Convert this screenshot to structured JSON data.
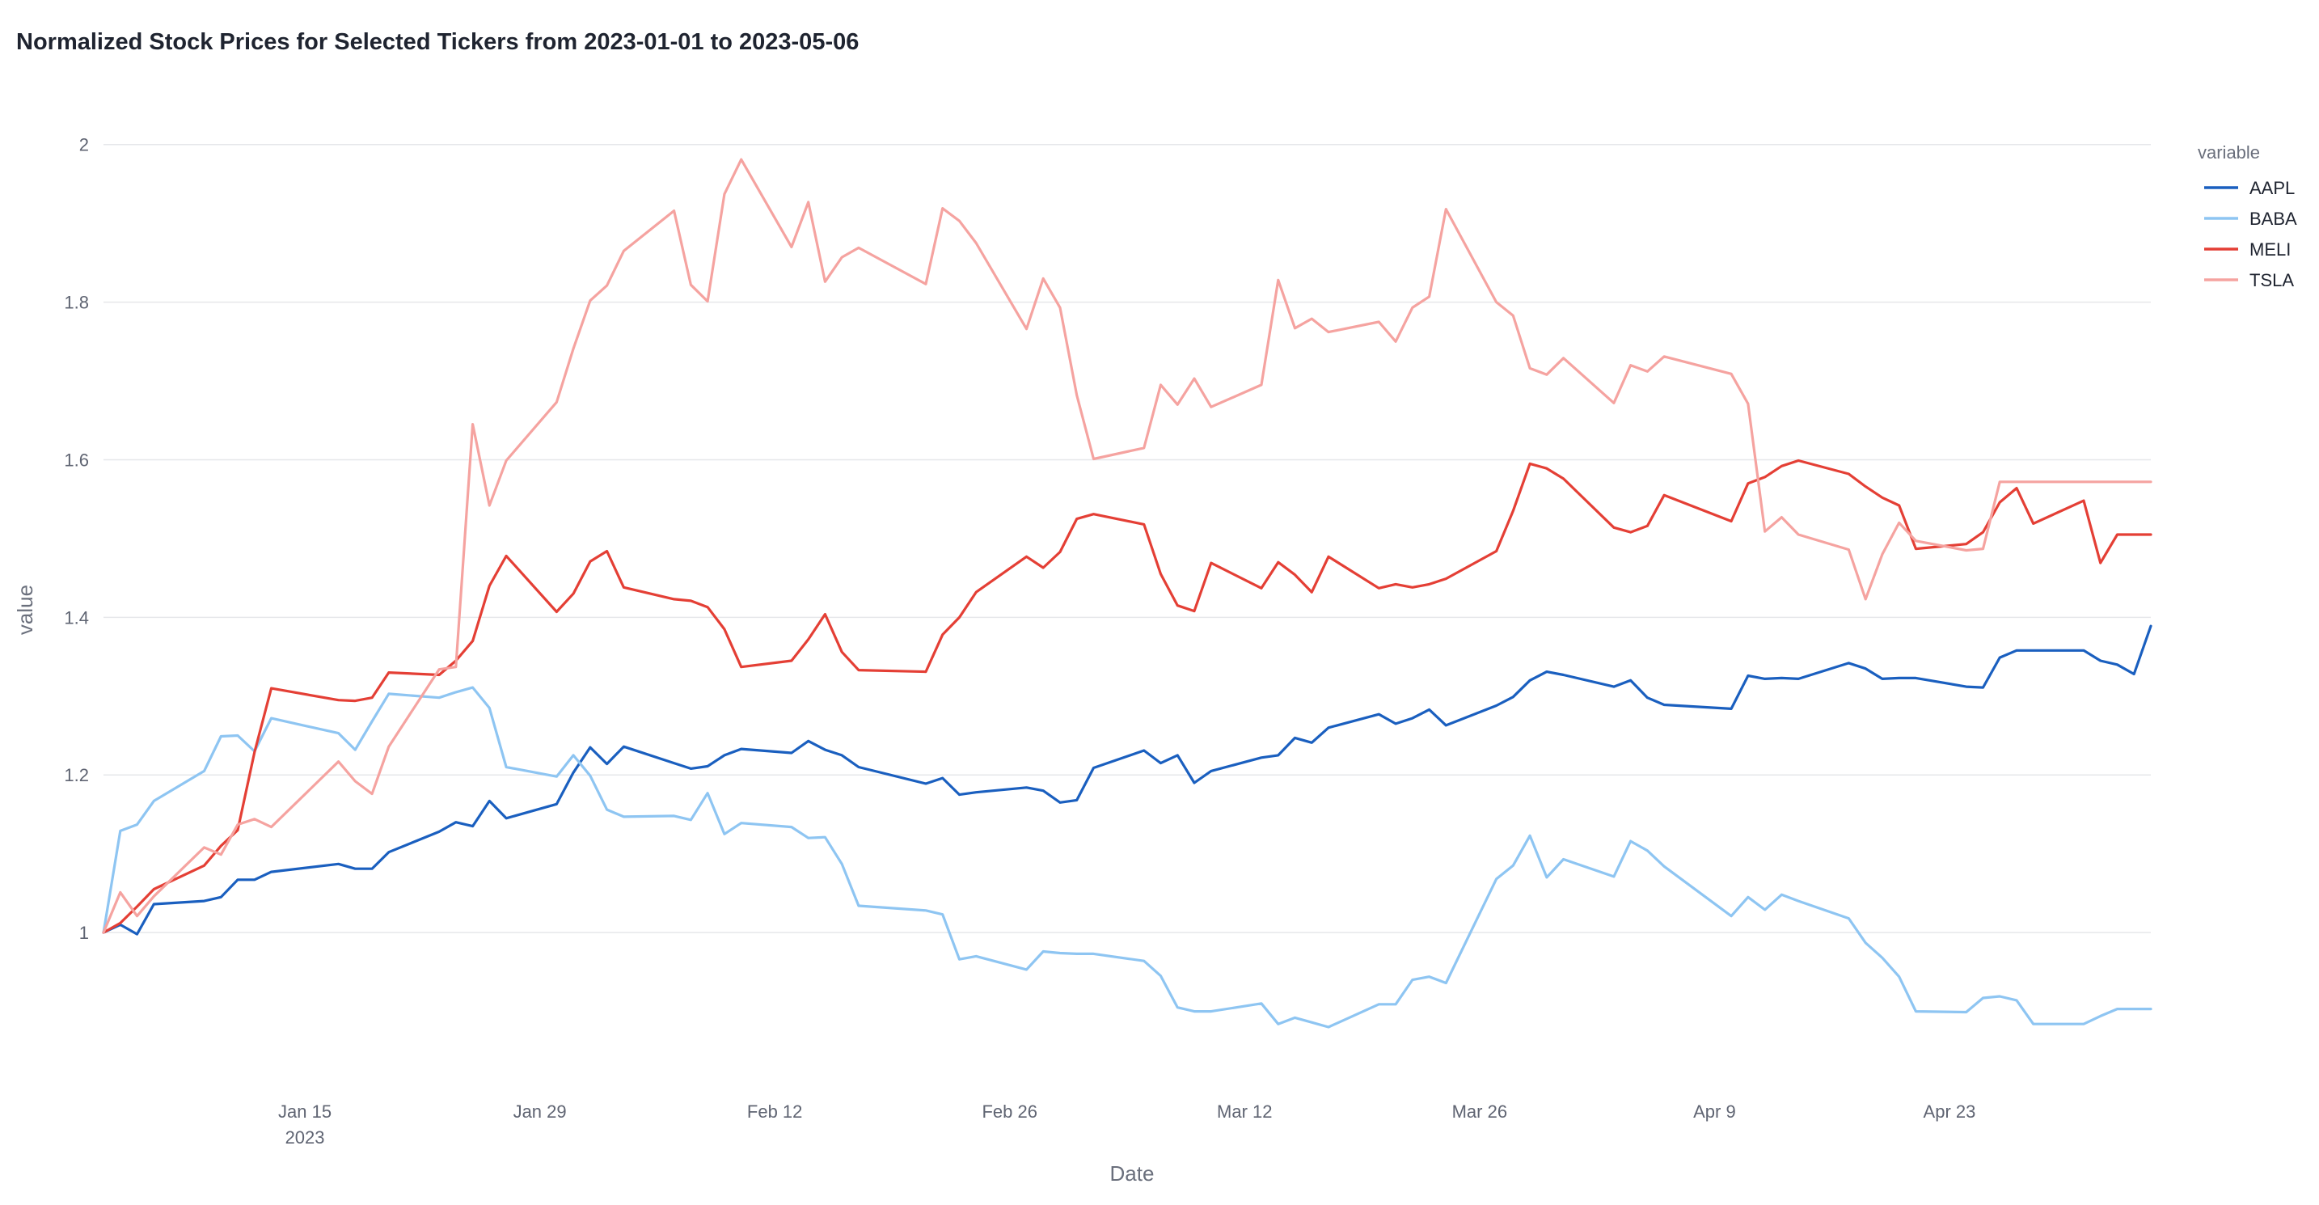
{
  "chart_data": {
    "type": "line",
    "title": "Normalized Stock Prices for Selected Tickers from 2023-01-01 to 2023-05-06",
    "xlabel": "Date",
    "ylabel": "value",
    "legend_title": "variable",
    "legend_position": "top-right",
    "grid": true,
    "ylim": [
      0.8,
      2.05
    ],
    "xlim": [
      "2023-01-03",
      "2023-05-05"
    ],
    "y_ticks": [
      1,
      1.2,
      1.4,
      1.6,
      1.8,
      2
    ],
    "y_tick_labels": [
      "1",
      "1.2",
      "1.4",
      "1.6",
      "1.8",
      "2"
    ],
    "x_ticks": [
      {
        "date": "2023-01-15",
        "label": "Jan 15",
        "sublabel": "2023"
      },
      {
        "date": "2023-01-29",
        "label": "Jan 29",
        "sublabel": ""
      },
      {
        "date": "2023-02-12",
        "label": "Feb 12",
        "sublabel": ""
      },
      {
        "date": "2023-02-26",
        "label": "Feb 26",
        "sublabel": ""
      },
      {
        "date": "2023-03-12",
        "label": "Mar 12",
        "sublabel": ""
      },
      {
        "date": "2023-03-26",
        "label": "Mar 26",
        "sublabel": ""
      },
      {
        "date": "2023-04-09",
        "label": "Apr 9",
        "sublabel": ""
      },
      {
        "date": "2023-04-23",
        "label": "Apr 23",
        "sublabel": ""
      }
    ],
    "x": [
      "2023-01-03",
      "2023-01-04",
      "2023-01-05",
      "2023-01-06",
      "2023-01-09",
      "2023-01-10",
      "2023-01-11",
      "2023-01-12",
      "2023-01-13",
      "2023-01-17",
      "2023-01-18",
      "2023-01-19",
      "2023-01-20",
      "2023-01-23",
      "2023-01-24",
      "2023-01-25",
      "2023-01-26",
      "2023-01-27",
      "2023-01-30",
      "2023-01-31",
      "2023-02-01",
      "2023-02-02",
      "2023-02-03",
      "2023-02-06",
      "2023-02-07",
      "2023-02-08",
      "2023-02-09",
      "2023-02-10",
      "2023-02-13",
      "2023-02-14",
      "2023-02-15",
      "2023-02-16",
      "2023-02-17",
      "2023-02-21",
      "2023-02-22",
      "2023-02-23",
      "2023-02-24",
      "2023-02-27",
      "2023-02-28",
      "2023-03-01",
      "2023-03-02",
      "2023-03-03",
      "2023-03-06",
      "2023-03-07",
      "2023-03-08",
      "2023-03-09",
      "2023-03-10",
      "2023-03-13",
      "2023-03-14",
      "2023-03-15",
      "2023-03-16",
      "2023-03-17",
      "2023-03-20",
      "2023-03-21",
      "2023-03-22",
      "2023-03-23",
      "2023-03-24",
      "2023-03-27",
      "2023-03-28",
      "2023-03-29",
      "2023-03-30",
      "2023-03-31",
      "2023-04-03",
      "2023-04-04",
      "2023-04-05",
      "2023-04-06",
      "2023-04-10",
      "2023-04-11",
      "2023-04-12",
      "2023-04-13",
      "2023-04-14",
      "2023-04-17",
      "2023-04-18",
      "2023-04-19",
      "2023-04-20",
      "2023-04-21",
      "2023-04-24",
      "2023-04-25",
      "2023-04-26",
      "2023-04-27",
      "2023-04-28",
      "2023-05-01",
      "2023-05-02",
      "2023-05-03",
      "2023-05-04",
      "2023-05-05"
    ],
    "series": [
      {
        "name": "AAPL",
        "color": "#1a5fbf",
        "values": [
          1.0,
          1.01,
          0.998,
          1.036,
          1.04,
          1.045,
          1.067,
          1.067,
          1.077,
          1.087,
          1.081,
          1.081,
          1.102,
          1.128,
          1.14,
          1.135,
          1.167,
          1.145,
          1.163,
          1.203,
          1.235,
          1.214,
          1.236,
          1.215,
          1.208,
          1.211,
          1.225,
          1.233,
          1.228,
          1.243,
          1.232,
          1.225,
          1.21,
          1.189,
          1.196,
          1.175,
          1.178,
          1.184,
          1.18,
          1.165,
          1.168,
          1.209,
          1.231,
          1.215,
          1.225,
          1.19,
          1.205,
          1.222,
          1.225,
          1.247,
          1.241,
          1.26,
          1.277,
          1.265,
          1.272,
          1.283,
          1.263,
          1.288,
          1.299,
          1.32,
          1.331,
          1.327,
          1.312,
          1.32,
          1.298,
          1.289,
          1.284,
          1.326,
          1.322,
          1.323,
          1.322,
          1.342,
          1.335,
          1.322,
          1.323,
          1.323,
          1.312,
          1.311,
          1.349,
          1.358,
          1.358,
          1.358,
          1.345,
          1.34,
          1.328,
          1.389
        ]
      },
      {
        "name": "BABA",
        "color": "#8ec5f2",
        "values": [
          1.0,
          1.129,
          1.137,
          1.167,
          1.205,
          1.249,
          1.25,
          1.23,
          1.272,
          1.253,
          1.232,
          1.268,
          1.303,
          1.298,
          1.305,
          1.311,
          1.285,
          1.21,
          1.198,
          1.225,
          1.199,
          1.156,
          1.147,
          1.148,
          1.143,
          1.177,
          1.125,
          1.139,
          1.134,
          1.12,
          1.121,
          1.087,
          1.034,
          1.028,
          1.023,
          0.966,
          0.97,
          0.953,
          0.976,
          0.974,
          0.973,
          0.973,
          0.964,
          0.945,
          0.905,
          0.9,
          0.9,
          0.91,
          0.884,
          0.892,
          0.886,
          0.88,
          0.909,
          0.909,
          0.94,
          0.944,
          0.936,
          1.068,
          1.085,
          1.123,
          1.07,
          1.093,
          1.071,
          1.116,
          1.104,
          1.084,
          1.021,
          1.045,
          1.029,
          1.048,
          1.04,
          1.018,
          0.987,
          0.968,
          0.944,
          0.9,
          0.899,
          0.917,
          0.919,
          0.914,
          0.884,
          0.884,
          0.894,
          0.903,
          0.903,
          0.903
        ]
      },
      {
        "name": "MELI",
        "color": "#e43f35",
        "values": [
          1.0,
          1.012,
          1.033,
          1.055,
          1.085,
          1.11,
          1.13,
          1.229,
          1.31,
          1.295,
          1.294,
          1.298,
          1.33,
          1.327,
          1.345,
          1.37,
          1.44,
          1.478,
          1.407,
          1.43,
          1.471,
          1.484,
          1.438,
          1.423,
          1.421,
          1.413,
          1.385,
          1.337,
          1.345,
          1.372,
          1.404,
          1.356,
          1.333,
          1.331,
          1.378,
          1.4,
          1.432,
          1.477,
          1.463,
          1.483,
          1.525,
          1.531,
          1.518,
          1.455,
          1.415,
          1.408,
          1.469,
          1.437,
          1.47,
          1.454,
          1.432,
          1.477,
          1.437,
          1.442,
          1.438,
          1.442,
          1.449,
          1.484,
          1.535,
          1.595,
          1.589,
          1.576,
          1.514,
          1.508,
          1.516,
          1.555,
          1.522,
          1.57,
          1.578,
          1.592,
          1.599,
          1.582,
          1.566,
          1.552,
          1.542,
          1.487,
          1.493,
          1.508,
          1.546,
          1.564,
          1.519,
          1.548,
          1.469,
          1.505,
          1.505,
          1.505
        ]
      },
      {
        "name": "TSLA",
        "color": "#f5a3a0",
        "values": [
          1.0,
          1.051,
          1.021,
          1.046,
          1.108,
          1.099,
          1.137,
          1.144,
          1.134,
          1.217,
          1.192,
          1.176,
          1.236,
          1.334,
          1.337,
          1.645,
          1.542,
          1.599,
          1.673,
          1.741,
          1.802,
          1.821,
          1.865,
          1.916,
          1.822,
          1.801,
          1.937,
          1.981,
          1.87,
          1.927,
          1.826,
          1.857,
          1.869,
          1.823,
          1.919,
          1.903,
          1.875,
          1.766,
          1.83,
          1.793,
          1.682,
          1.601,
          1.615,
          1.695,
          1.67,
          1.703,
          1.667,
          1.695,
          1.828,
          1.767,
          1.779,
          1.762,
          1.775,
          1.75,
          1.793,
          1.807,
          1.918,
          1.8,
          1.783,
          1.716,
          1.708,
          1.729,
          1.672,
          1.72,
          1.712,
          1.731,
          1.709,
          1.671,
          1.509,
          1.527,
          1.505,
          1.486,
          1.423,
          1.48,
          1.52,
          1.497,
          1.485,
          1.487,
          1.572,
          1.572,
          1.572,
          1.572,
          1.572,
          1.572,
          1.572,
          1.572
        ]
      }
    ]
  }
}
